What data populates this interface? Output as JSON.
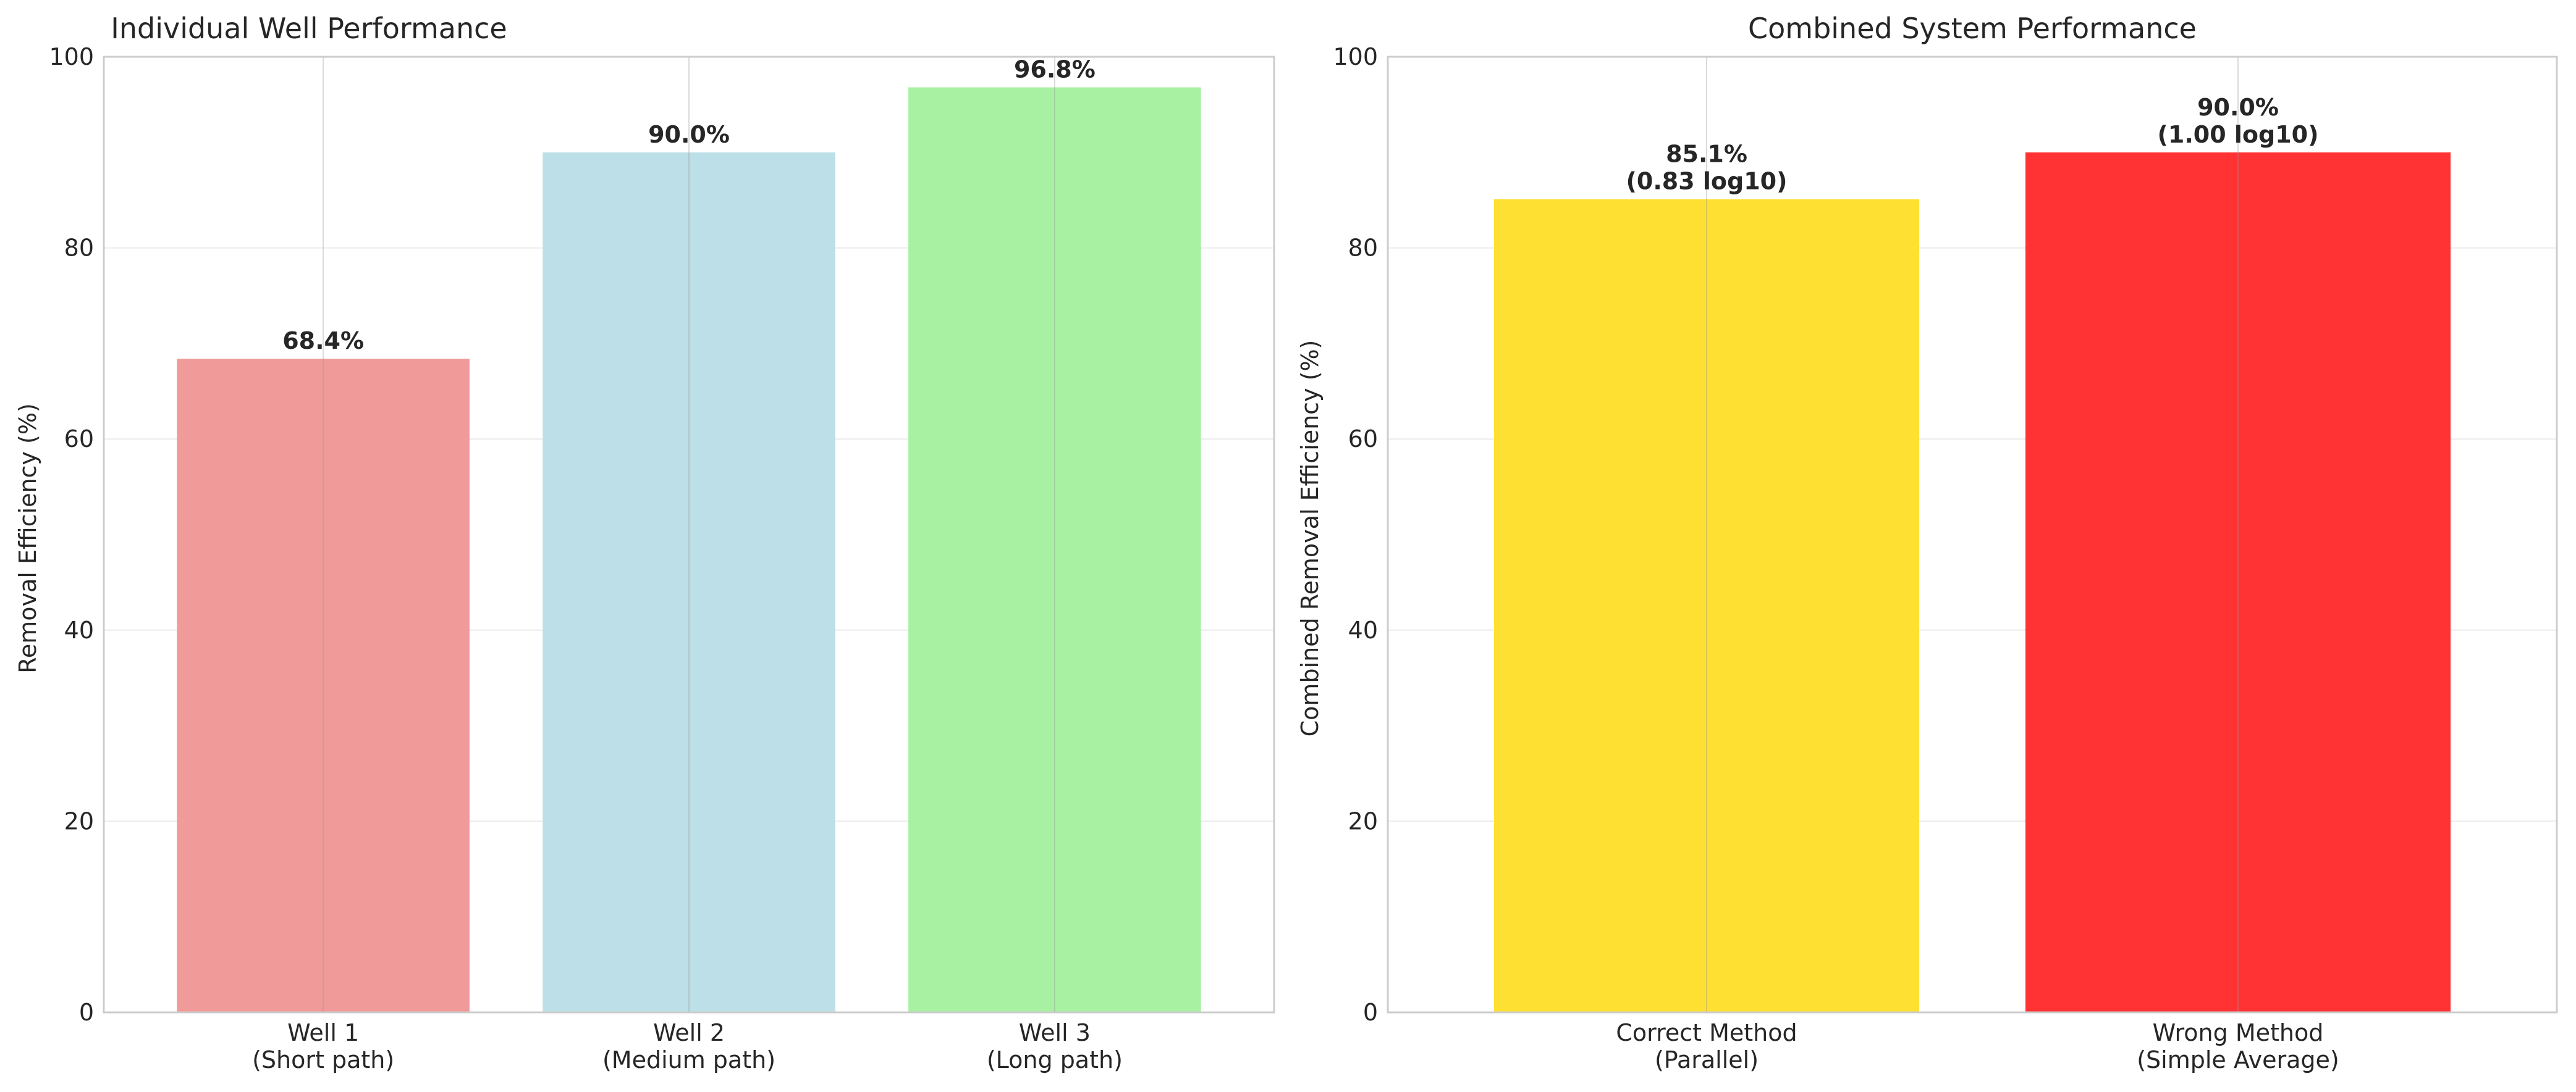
{
  "chart_data": [
    {
      "type": "bar",
      "title": "Individual Well Performance",
      "xlabel": "",
      "ylabel": "Removal Efficiency (%)",
      "ylim": [
        0,
        100
      ],
      "yticks": [
        0,
        20,
        40,
        60,
        80,
        100
      ],
      "grid": true,
      "categories": [
        [
          "Well 1",
          "(Short path)"
        ],
        [
          "Well 2",
          "(Medium path)"
        ],
        [
          "Well 3",
          "(Long path)"
        ]
      ],
      "values": [
        68.4,
        90.0,
        96.8
      ],
      "data_labels": [
        [
          "68.4%"
        ],
        [
          "90.0%"
        ],
        [
          "96.8%"
        ]
      ],
      "colors": [
        "#f09a99",
        "#bddfe8",
        "#a8f0a2"
      ]
    },
    {
      "type": "bar",
      "title": "Combined System Performance",
      "xlabel": "",
      "ylabel": "Combined Removal Efficiency (%)",
      "ylim": [
        0,
        100
      ],
      "yticks": [
        0,
        20,
        40,
        60,
        80,
        100
      ],
      "grid": true,
      "categories": [
        [
          "Correct Method",
          "(Parallel)"
        ],
        [
          "Wrong Method",
          "(Simple Average)"
        ]
      ],
      "values": [
        85.1,
        90.0
      ],
      "data_labels": [
        [
          "85.1%",
          "(0.83 log10)"
        ],
        [
          "90.0%",
          "(1.00 log10)"
        ]
      ],
      "colors": [
        "#fee033",
        "#ff3333"
      ]
    }
  ]
}
